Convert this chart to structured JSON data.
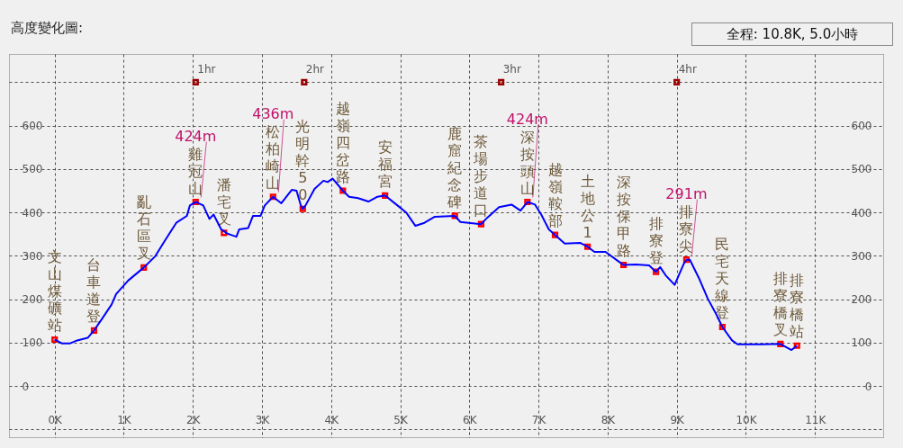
{
  "chart_data": {
    "type": "line",
    "title": "高度變化圖:",
    "subtitle": "全程: 10.8K, 5.0小時",
    "xlim": [
      -0.66,
      12.0
    ],
    "ylim": [
      -120,
      765
    ],
    "y2lim": [
      -120,
      765
    ],
    "xticks": [
      {
        "value": 0,
        "label": "0K"
      },
      {
        "value": 1,
        "label": "1K"
      },
      {
        "value": 2,
        "label": "2K"
      },
      {
        "value": 3,
        "label": "3K"
      },
      {
        "value": 4,
        "label": "4K"
      },
      {
        "value": 5,
        "label": "5K"
      },
      {
        "value": 6,
        "label": "6K"
      },
      {
        "value": 7,
        "label": "7K"
      },
      {
        "value": 8,
        "label": "8K"
      },
      {
        "value": 9,
        "label": "9K"
      },
      {
        "value": 10,
        "label": "10K"
      },
      {
        "value": 11,
        "label": "11K"
      }
    ],
    "yticks": [
      {
        "value": -100,
        "label": null
      },
      0,
      100,
      200,
      300,
      400,
      500,
      600,
      {
        "value": 700,
        "label": null
      }
    ],
    "y2ticks": [
      0,
      100,
      200,
      300,
      400,
      500,
      600
    ],
    "grid": true,
    "series": [
      {
        "color": "#0000ff",
        "marker": "none",
        "x": [
          0,
          0.109,
          0.218,
          0.326,
          0.478,
          0.57,
          0.695,
          0.825,
          0.89,
          1.064,
          1.29,
          1.456,
          1.587,
          1.76,
          1.913,
          1.957,
          2.04,
          2.15,
          2.24,
          2.3,
          2.41,
          2.5,
          2.63,
          2.67,
          2.8,
          2.87,
          2.98,
          3.04,
          3.16,
          3.28,
          3.43,
          3.5,
          3.56,
          3.59,
          3.63,
          3.76,
          3.89,
          3.95,
          4.02,
          4.17,
          4.26,
          4.39,
          4.54,
          4.67,
          4.78,
          4.96,
          5.09,
          5.22,
          5.35,
          5.5,
          5.79,
          5.87,
          6.17,
          6.26,
          6.43,
          6.61,
          6.74,
          6.84,
          6.95,
          7.04,
          7.15,
          7.24,
          7.38,
          7.6,
          7.71,
          7.81,
          7.97,
          8.15,
          8.23,
          8.41,
          8.6,
          8.7,
          8.76,
          8.84,
          8.97,
          9.1,
          9.14,
          9.19,
          9.32,
          9.45,
          9.58,
          9.66,
          9.8,
          9.88,
          10.23,
          10.5,
          10.66,
          10.74
        ],
        "values": [
          107,
          98,
          98,
          105,
          111,
          128,
          157,
          188,
          212,
          243,
          273,
          299,
          333,
          376,
          392,
          416,
          424,
          416,
          385,
          395,
          361,
          351,
          344,
          361,
          364,
          392,
          392,
          416,
          436,
          421,
          452,
          450,
          417,
          408,
          416,
          454,
          473,
          470,
          478,
          450,
          436,
          433,
          425,
          436,
          439,
          416,
          399,
          369,
          376,
          390,
          392,
          378,
          373,
          388,
          412,
          418,
          404,
          424,
          418,
          395,
          361,
          348,
          328,
          330,
          321,
          309,
          309,
          288,
          279,
          280,
          278,
          263,
          274,
          255,
          233,
          281,
          291,
          291,
          249,
          201,
          163,
          136,
          105,
          96,
          96,
          97,
          83,
          93
        ]
      },
      {
        "type": "scatter",
        "color": "#ff0000",
        "marker": "square",
        "x": [
          0,
          0.57,
          1.29,
          2.04,
          2.45,
          3.16,
          3.59,
          4.17,
          4.78,
          5.79,
          6.17,
          6.84,
          7.24,
          7.71,
          8.23,
          8.7,
          9.14,
          9.66,
          10.5,
          10.74
        ],
        "values": [
          107,
          128,
          273,
          424,
          353,
          436,
          408,
          450,
          439,
          392,
          373,
          424,
          348,
          321,
          279,
          263,
          291,
          136,
          97,
          93
        ],
        "value_labels": [
          "文山煤礦站",
          "台車道登",
          "亂石區叉",
          "雞冠山",
          "潘宅叉",
          "松柏崎山",
          "光明幹50",
          "越嶺四岔路",
          "安福宮",
          "鹿窟紀念碑",
          "茶場步道口",
          "深按頭山",
          "越嶺鞍部",
          "土地公1",
          "深按保甲路",
          "排寮登",
          "排寮尖",
          "民宅天線登",
          "排寮橋叉",
          "排寮橋站"
        ]
      },
      {
        "type": "scatter",
        "color": "#990000",
        "marker": "square",
        "x": [
          2.04,
          3.61,
          6.46,
          9.0
        ],
        "values": [
          700,
          700,
          700,
          700
        ]
      }
    ],
    "annotations": [
      {
        "text": "1hr",
        "x": 2.04,
        "y": 700
      },
      {
        "text": "2hr",
        "x": 3.61,
        "y": 700
      },
      {
        "text": "3hr",
        "x": 6.46,
        "y": 700
      },
      {
        "text": "4hr",
        "x": 9.0,
        "y": 700
      },
      {
        "text": "424m",
        "x": 2.04,
        "y": 424
      },
      {
        "text": "436m",
        "x": 3.16,
        "y": 436
      },
      {
        "text": "424m",
        "x": 6.84,
        "y": 424
      },
      {
        "text": "291m",
        "x": 9.14,
        "y": 291
      }
    ]
  }
}
